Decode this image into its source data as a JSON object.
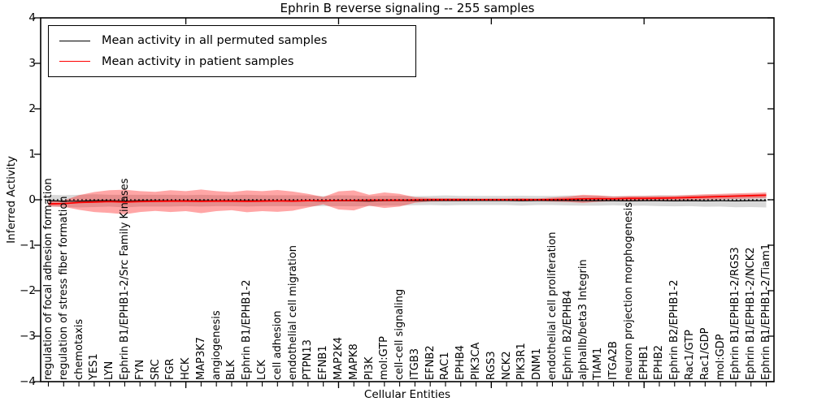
{
  "title": "Ephrin B reverse signaling -- 255 samples",
  "legend": {
    "items": [
      {
        "label": "Mean activity in all permuted samples",
        "color": "#000000"
      },
      {
        "label": "Mean activity in patient samples",
        "color": "#ff0000"
      }
    ]
  },
  "chart_data": {
    "type": "line",
    "title": "Ephrin B reverse signaling -- 255 samples",
    "xlabel": "Cellular Entities",
    "ylabel": "Inferred Activity",
    "ylim": [
      -4,
      4
    ],
    "yticks": [
      4,
      3,
      2,
      1,
      0,
      -1,
      -2,
      -3,
      -4
    ],
    "grid": false,
    "zero_line": "dotted",
    "legend_position": "upper left",
    "categories": [
      "regulation of focal adhesion formation",
      "regulation of stress fiber formation",
      "chemotaxis",
      "YES1",
      "LYN",
      "Ephrin B1/EPHB1-2/Src Family Kinases",
      "FYN",
      "SRC",
      "FGR",
      "HCK",
      "MAP3K7",
      "angiogenesis",
      "BLK",
      "Ephrin B1/EPHB1-2",
      "LCK",
      "cell adhesion",
      "endothelial cell migration",
      "PTPN13",
      "EFNB1",
      "MAP2K4",
      "MAPK8",
      "PI3K",
      "mol:GTP",
      "cell-cell signaling",
      "ITGB3",
      "EFNB2",
      "RAC1",
      "EPHB4",
      "PIK3CA",
      "RGS3",
      "NCK2",
      "PIK3R1",
      "DNM1",
      "endothelial cell proliferation",
      "Ephrin B2/EPHB4",
      "alphaIIb/beta3 Integrin",
      "TIAM1",
      "ITGA2B",
      "neuron projection morphogenesis",
      "EPHB1",
      "EPHB2",
      "Ephrin B2/EPHB1-2",
      "Rac1/GTP",
      "Rac1/GDP",
      "mol:GDP",
      "Ephrin B1/EPHB1-2/RGS3",
      "Ephrin B1/EPHB1-2/NCK2",
      "Ephrin B1/EPHB1-2/Tiam1"
    ],
    "series": [
      {
        "name": "Mean activity in all permuted samples",
        "color": "#000000",
        "band_color": "rgba(0,0,0,0.15)",
        "line_width": 1.2,
        "mean": [
          -0.02,
          -0.03,
          -0.03,
          -0.02,
          -0.02,
          -0.03,
          -0.02,
          -0.02,
          -0.02,
          -0.02,
          -0.02,
          -0.02,
          -0.02,
          -0.02,
          -0.02,
          -0.02,
          -0.02,
          -0.025,
          -0.03,
          -0.02,
          -0.025,
          -0.03,
          -0.02,
          -0.02,
          -0.02,
          -0.015,
          -0.015,
          -0.015,
          -0.015,
          -0.015,
          -0.015,
          -0.02,
          -0.015,
          -0.015,
          -0.015,
          -0.02,
          -0.02,
          -0.02,
          -0.025,
          -0.02,
          -0.02,
          -0.025,
          -0.02,
          -0.025,
          -0.02,
          -0.025,
          -0.02,
          -0.02
        ],
        "std": [
          0.13,
          0.13,
          0.14,
          0.14,
          0.13,
          0.14,
          0.13,
          0.13,
          0.13,
          0.12,
          0.13,
          0.12,
          0.12,
          0.13,
          0.12,
          0.12,
          0.12,
          0.12,
          0.11,
          0.12,
          0.12,
          0.11,
          0.11,
          0.11,
          0.1,
          0.1,
          0.11,
          0.1,
          0.1,
          0.1,
          0.1,
          0.11,
          0.1,
          0.1,
          0.11,
          0.11,
          0.11,
          0.1,
          0.11,
          0.11,
          0.12,
          0.12,
          0.12,
          0.13,
          0.13,
          0.14,
          0.14,
          0.15
        ]
      },
      {
        "name": "Mean activity in patient samples",
        "color": "#ff0000",
        "band_color": "rgba(255,0,0,0.35)",
        "line_width": 1.8,
        "mean": [
          -0.09,
          -0.085,
          -0.06,
          -0.05,
          -0.04,
          -0.05,
          -0.04,
          -0.035,
          -0.03,
          -0.03,
          -0.035,
          -0.03,
          -0.03,
          -0.035,
          -0.03,
          -0.025,
          -0.03,
          -0.02,
          -0.02,
          -0.015,
          -0.015,
          -0.01,
          -0.01,
          -0.01,
          -0.005,
          0,
          0,
          0,
          0,
          0,
          0,
          0,
          0,
          0.005,
          0.01,
          0.02,
          0.025,
          0.02,
          0.03,
          0.03,
          0.035,
          0.04,
          0.05,
          0.06,
          0.07,
          0.08,
          0.09,
          0.1
        ],
        "std": [
          0.055,
          0.07,
          0.16,
          0.22,
          0.25,
          0.27,
          0.23,
          0.21,
          0.24,
          0.22,
          0.26,
          0.22,
          0.2,
          0.24,
          0.22,
          0.24,
          0.21,
          0.15,
          0.08,
          0.2,
          0.22,
          0.12,
          0.17,
          0.14,
          0.06,
          0.04,
          0.035,
          0.035,
          0.03,
          0.03,
          0.03,
          0.035,
          0.03,
          0.045,
          0.06,
          0.09,
          0.07,
          0.05,
          0.05,
          0.05,
          0.05,
          0.05,
          0.055,
          0.06,
          0.06,
          0.06,
          0.06,
          0.06
        ]
      }
    ]
  }
}
